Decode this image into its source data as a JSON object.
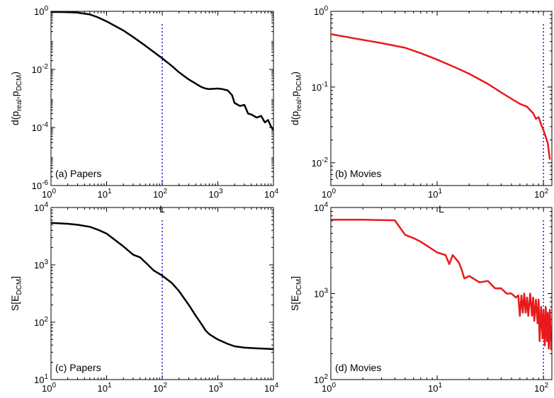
{
  "chart_data": [
    {
      "id": "a",
      "type": "line",
      "annotation": "(a) Papers",
      "xlabel": "L",
      "ylabel_main": "d(p",
      "ylabel_sub1": "real",
      "ylabel_mid": ",p",
      "ylabel_sub2": "DCM",
      "ylabel_end": ")",
      "xscale": "log",
      "yscale": "log",
      "xlim": [
        1,
        10000
      ],
      "ylim": [
        1e-06,
        1
      ],
      "xtick_exps": [
        0,
        1,
        2,
        3,
        4
      ],
      "ytick_exps": [
        -6,
        -4,
        -2,
        0
      ],
      "ticks": {
        "x": [
          {
            "base": "10",
            "exp": "0"
          },
          {
            "base": "10",
            "exp": "1"
          },
          {
            "base": "10",
            "exp": "2"
          },
          {
            "base": "10",
            "exp": "3"
          },
          {
            "base": "10",
            "exp": "4"
          }
        ],
        "y": [
          {
            "base": "10",
            "exp": "-6"
          },
          {
            "base": "10",
            "exp": "-4"
          },
          {
            "base": "10",
            "exp": "-2"
          },
          {
            "base": "10",
            "exp": "0"
          }
        ]
      },
      "vline_x": 100,
      "line_color": "#000000",
      "vline_color": "#1a1adc",
      "series": [
        {
          "x": [
            1,
            2,
            3,
            5,
            7,
            10,
            20,
            30,
            50,
            70,
            100,
            150,
            200,
            300,
            500,
            600,
            700,
            1000,
            1200,
            1500,
            1800,
            2000,
            2500,
            3000,
            3500,
            4000,
            5000,
            6000,
            7000,
            8000,
            9000,
            10000
          ],
          "y": [
            0.95,
            0.94,
            0.9,
            0.78,
            0.62,
            0.45,
            0.22,
            0.13,
            0.065,
            0.04,
            0.024,
            0.013,
            0.008,
            0.0045,
            0.0025,
            0.0022,
            0.0021,
            0.0022,
            0.0021,
            0.0019,
            0.0013,
            0.0007,
            0.00055,
            0.0006,
            0.0003,
            0.00028,
            0.00022,
            0.00025,
            0.00015,
            0.00018,
            0.00011,
            8e-05
          ]
        }
      ]
    },
    {
      "id": "b",
      "type": "line",
      "annotation": "(b) Movies",
      "xlabel": "L",
      "ylabel_main": "d(p",
      "ylabel_sub1": "real",
      "ylabel_mid": ",p",
      "ylabel_sub2": "DCM",
      "ylabel_end": ")",
      "xscale": "log",
      "yscale": "log",
      "xlim": [
        1,
        120
      ],
      "ylim": [
        0.005,
        1
      ],
      "xtick_exps": [
        0,
        1,
        2
      ],
      "ytick_exps": [
        -2,
        -1,
        0
      ],
      "ticks": {
        "x": [
          {
            "base": "10",
            "exp": "0"
          },
          {
            "base": "10",
            "exp": "1"
          },
          {
            "base": "10",
            "exp": "2"
          }
        ],
        "y": [
          {
            "base": "10",
            "exp": "-2"
          },
          {
            "base": "10",
            "exp": "-1"
          },
          {
            "base": "10",
            "exp": "0"
          }
        ]
      },
      "vline_x": 100,
      "line_color": "#e8191a",
      "vline_color": "#1a1adc",
      "series": [
        {
          "x": [
            1,
            2,
            3,
            5,
            7,
            10,
            15,
            20,
            30,
            40,
            50,
            60,
            70,
            80,
            85,
            90,
            95,
            100,
            105,
            110,
            115
          ],
          "y": [
            0.5,
            0.42,
            0.38,
            0.33,
            0.28,
            0.23,
            0.18,
            0.15,
            0.11,
            0.085,
            0.07,
            0.06,
            0.055,
            0.045,
            0.038,
            0.04,
            0.032,
            0.027,
            0.022,
            0.018,
            0.011
          ]
        }
      ]
    },
    {
      "id": "c",
      "type": "line",
      "annotation": "(c) Papers",
      "xlabel": "L",
      "ylabel_main": "S[E",
      "ylabel_sub1": "DCM",
      "ylabel_mid": "",
      "ylabel_sub2": "",
      "ylabel_end": "]",
      "xscale": "log",
      "yscale": "log",
      "xlim": [
        1,
        10000
      ],
      "ylim": [
        10,
        10000
      ],
      "xtick_exps": [
        0,
        1,
        2,
        3,
        4
      ],
      "ytick_exps": [
        1,
        2,
        3,
        4
      ],
      "ticks": {
        "x": [
          {
            "base": "10",
            "exp": "0"
          },
          {
            "base": "10",
            "exp": "1"
          },
          {
            "base": "10",
            "exp": "2"
          },
          {
            "base": "10",
            "exp": "3"
          },
          {
            "base": "10",
            "exp": "4"
          }
        ],
        "y": [
          {
            "base": "10",
            "exp": "1"
          },
          {
            "base": "10",
            "exp": "2"
          },
          {
            "base": "10",
            "exp": "3"
          },
          {
            "base": "10",
            "exp": "4"
          }
        ]
      },
      "vline_x": 100,
      "line_color": "#000000",
      "vline_color": "#1a1adc",
      "series": [
        {
          "x": [
            1,
            2,
            3,
            5,
            7,
            10,
            20,
            30,
            40,
            50,
            70,
            100,
            150,
            200,
            300,
            400,
            500,
            600,
            700,
            1000,
            1500,
            2000,
            3000,
            5000,
            7000,
            10000
          ],
          "y": [
            5400,
            5200,
            5000,
            4600,
            4100,
            3500,
            2100,
            1500,
            1350,
            1100,
            800,
            650,
            480,
            350,
            200,
            130,
            95,
            72,
            62,
            50,
            42,
            38,
            36,
            35,
            34.5,
            34
          ]
        }
      ]
    },
    {
      "id": "d",
      "type": "line",
      "annotation": "(d) Movies",
      "xlabel": "L",
      "ylabel_main": "S[E",
      "ylabel_sub1": "DCM",
      "ylabel_mid": "",
      "ylabel_sub2": "",
      "ylabel_end": "]",
      "xscale": "log",
      "yscale": "log",
      "xlim": [
        1,
        120
      ],
      "ylim": [
        100,
        10000
      ],
      "xtick_exps": [
        0,
        1,
        2
      ],
      "ytick_exps": [
        2,
        3,
        4
      ],
      "ticks": {
        "x": [
          {
            "base": "10",
            "exp": "0"
          },
          {
            "base": "10",
            "exp": "1"
          },
          {
            "base": "10",
            "exp": "2"
          }
        ],
        "y": [
          {
            "base": "10",
            "exp": "2"
          },
          {
            "base": "10",
            "exp": "3"
          },
          {
            "base": "10",
            "exp": "4"
          }
        ]
      },
      "vline_x": 100,
      "line_color": "#e8191a",
      "vline_color": "#1a1adc",
      "series": [
        {
          "x": [
            1,
            2,
            3,
            4,
            5,
            6,
            7,
            8,
            10,
            12,
            13,
            14,
            16,
            17,
            18,
            20,
            25,
            30,
            35,
            40,
            45,
            50,
            55,
            58,
            60,
            62,
            64,
            66,
            68,
            70,
            72,
            75,
            78,
            80,
            82,
            85,
            88,
            90,
            92,
            95,
            98,
            100,
            103,
            105,
            108,
            110,
            112,
            115,
            118
          ],
          "y": [
            7200,
            7200,
            7150,
            7100,
            4800,
            4400,
            4000,
            3600,
            3000,
            2800,
            2200,
            2800,
            2300,
            1900,
            1500,
            1600,
            1350,
            1400,
            1150,
            1150,
            1000,
            1000,
            900,
            950,
            550,
            950,
            600,
            1000,
            600,
            900,
            550,
            1000,
            550,
            900,
            480,
            850,
            450,
            850,
            280,
            700,
            300,
            650,
            250,
            700,
            280,
            600,
            230,
            650,
            220
          ]
        }
      ]
    }
  ]
}
